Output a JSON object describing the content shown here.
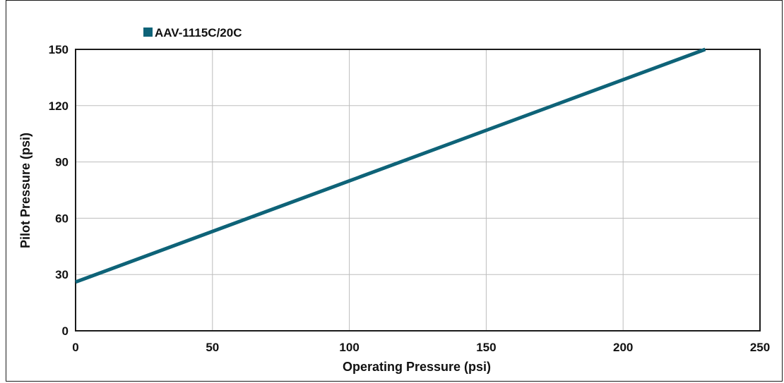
{
  "chart_data": {
    "type": "line",
    "title": "",
    "xlabel": "Operating Pressure (psi)",
    "ylabel": "Pilot Pressure (psi)",
    "xlim": [
      0,
      250
    ],
    "ylim": [
      0,
      150
    ],
    "xticks": [
      0,
      50,
      100,
      150,
      200,
      250
    ],
    "yticks": [
      0,
      30,
      60,
      90,
      120,
      150
    ],
    "grid": true,
    "legend_position": "top-left",
    "series": [
      {
        "name": "AAV-1115C/20C",
        "color": "#0e6378",
        "x": [
          0,
          230
        ],
        "y": [
          26,
          150
        ]
      }
    ]
  },
  "colors": {
    "series": "#0e6378",
    "grid": "#bdbdbd",
    "axis": "#1a1a1a"
  }
}
